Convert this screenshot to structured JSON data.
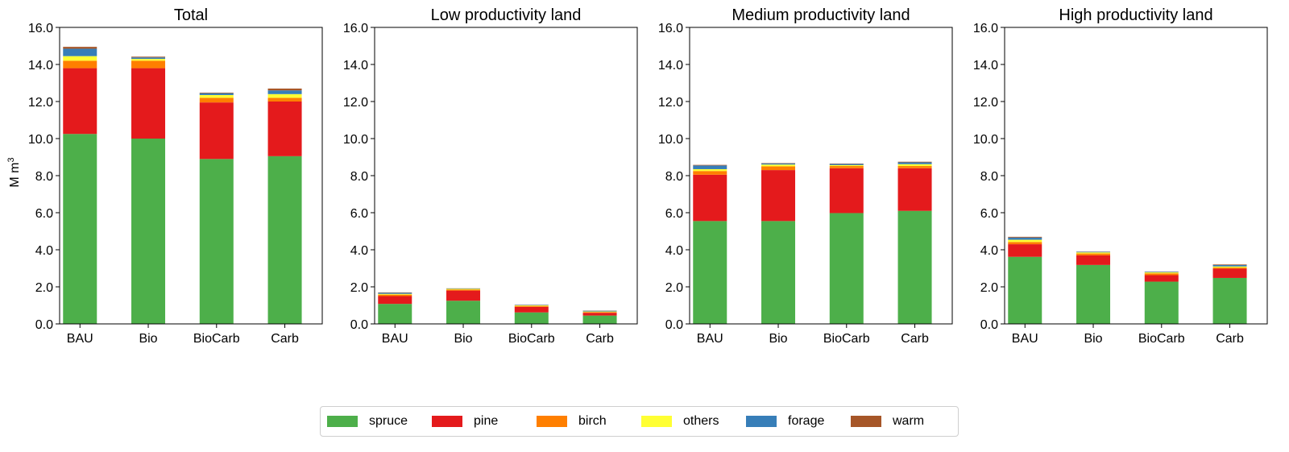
{
  "chart_data": {
    "type": "bar",
    "stacked": true,
    "ylabel": "M m",
    "ylabel_superscript": "3",
    "ylim": [
      0,
      16
    ],
    "yticks": [
      "0.0",
      "2.0",
      "4.0",
      "6.0",
      "8.0",
      "10.0",
      "12.0",
      "14.0",
      "16.0"
    ],
    "categories": [
      "BAU",
      "Bio",
      "BioCarb",
      "Carb"
    ],
    "colors": {
      "spruce": "#4daf4a",
      "pine": "#e41a1c",
      "birch": "#ff7f00",
      "others": "#ffff33",
      "forage": "#377eb8",
      "warm": "#a65628"
    },
    "legend": [
      "spruce",
      "pine",
      "birch",
      "others",
      "forage",
      "warm"
    ],
    "legend_position": "bottom-center",
    "panels": [
      {
        "title": "Total",
        "series": [
          {
            "name": "spruce",
            "values": [
              10.25,
              10.0,
              8.9,
              9.05
            ]
          },
          {
            "name": "pine",
            "values": [
              3.55,
              3.8,
              3.05,
              2.95
            ]
          },
          {
            "name": "birch",
            "values": [
              0.4,
              0.4,
              0.25,
              0.2
            ]
          },
          {
            "name": "others",
            "values": [
              0.25,
              0.1,
              0.15,
              0.2
            ]
          },
          {
            "name": "forage",
            "values": [
              0.4,
              0.08,
              0.1,
              0.2
            ]
          },
          {
            "name": "warm",
            "values": [
              0.1,
              0.04,
              0.03,
              0.1
            ]
          }
        ]
      },
      {
        "title": "Low productivity land",
        "series": [
          {
            "name": "spruce",
            "values": [
              1.08,
              1.25,
              0.62,
              0.45
            ]
          },
          {
            "name": "pine",
            "values": [
              0.42,
              0.55,
              0.3,
              0.15
            ]
          },
          {
            "name": "birch",
            "values": [
              0.08,
              0.05,
              0.05,
              0.04
            ]
          },
          {
            "name": "others",
            "values": [
              0.04,
              0.04,
              0.03,
              0.03
            ]
          },
          {
            "name": "forage",
            "values": [
              0.06,
              0.02,
              0.02,
              0.04
            ]
          },
          {
            "name": "warm",
            "values": [
              0.02,
              0.01,
              0.01,
              0.01
            ]
          }
        ]
      },
      {
        "title": "Medium productivity land",
        "series": [
          {
            "name": "spruce",
            "values": [
              5.55,
              5.55,
              5.98,
              6.1
            ]
          },
          {
            "name": "pine",
            "values": [
              2.5,
              2.75,
              2.42,
              2.3
            ]
          },
          {
            "name": "birch",
            "values": [
              0.2,
              0.2,
              0.12,
              0.12
            ]
          },
          {
            "name": "others",
            "values": [
              0.1,
              0.1,
              0.05,
              0.1
            ]
          },
          {
            "name": "forage",
            "values": [
              0.2,
              0.06,
              0.06,
              0.1
            ]
          },
          {
            "name": "warm",
            "values": [
              0.03,
              0.02,
              0.02,
              0.03
            ]
          }
        ]
      },
      {
        "title": "High productivity land",
        "series": [
          {
            "name": "spruce",
            "values": [
              3.62,
              3.18,
              2.28,
              2.48
            ]
          },
          {
            "name": "pine",
            "values": [
              0.68,
              0.52,
              0.35,
              0.5
            ]
          },
          {
            "name": "birch",
            "values": [
              0.12,
              0.1,
              0.1,
              0.06
            ]
          },
          {
            "name": "others",
            "values": [
              0.12,
              0.06,
              0.05,
              0.06
            ]
          },
          {
            "name": "forage",
            "values": [
              0.12,
              0.03,
              0.03,
              0.08
            ]
          },
          {
            "name": "warm",
            "values": [
              0.04,
              0.01,
              0.01,
              0.03
            ]
          }
        ]
      }
    ]
  }
}
